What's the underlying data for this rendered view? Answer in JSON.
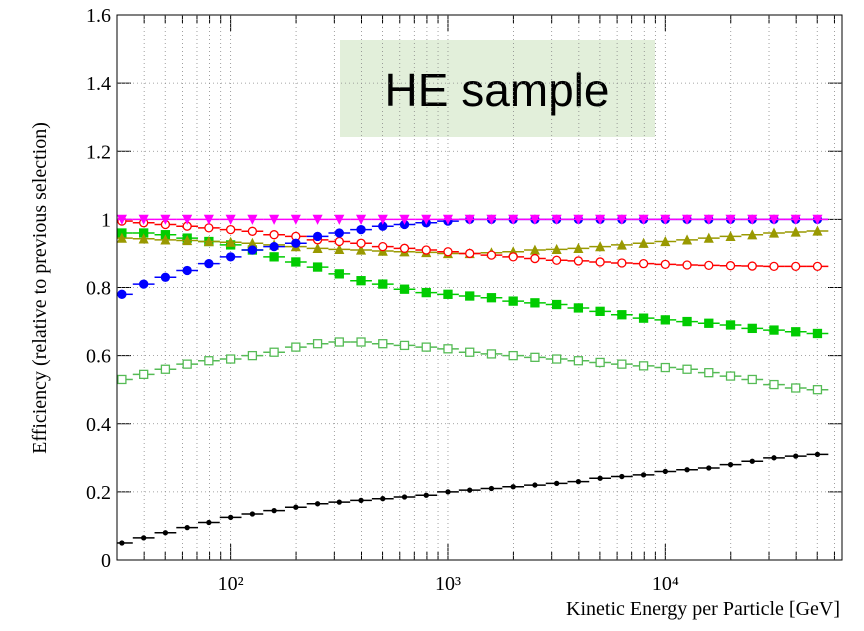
{
  "chart_data": {
    "type": "errorbar-scatter",
    "annotation": "HE sample",
    "xlabel": "Kinetic Energy per Particle [GeV]",
    "ylabel": "Efficiency (relative to previous selection)",
    "xscale": "log",
    "grid": true,
    "xlim": [
      30,
      65000
    ],
    "ylim": [
      0,
      1.6
    ],
    "yticks": [
      0,
      0.2,
      0.4,
      0.6,
      0.8,
      1,
      1.2,
      1.4,
      1.6
    ],
    "xticks": [
      {
        "value": 100,
        "label": "10²"
      },
      {
        "value": 1000,
        "label": "10³"
      },
      {
        "value": 10000,
        "label": "10⁴"
      }
    ],
    "xminorticks": [
      40,
      50,
      60,
      70,
      80,
      90,
      200,
      300,
      400,
      500,
      600,
      700,
      800,
      900,
      2000,
      3000,
      4000,
      5000,
      6000,
      7000,
      8000,
      9000,
      20000,
      30000,
      40000,
      50000,
      60000
    ],
    "x": [
      31.6,
      39.8,
      50.1,
      63.1,
      79.4,
      100,
      125.9,
      158.5,
      199.5,
      251.2,
      316.2,
      398.1,
      501.2,
      631,
      794.3,
      1000,
      1258.9,
      1584.9,
      1995.3,
      2511.9,
      3162.3,
      3981.1,
      5011.9,
      6309.6,
      7943.3,
      10000,
      12589,
      15849,
      19953,
      25119,
      31623,
      39811,
      50119
    ],
    "series": [
      {
        "color": "#ff00ff",
        "marker": "triangle-down",
        "values": [
          1,
          1,
          1,
          1,
          1,
          1,
          1,
          1,
          1,
          1,
          1,
          1,
          1,
          1,
          1,
          1,
          1,
          1,
          1,
          1,
          1,
          1,
          1,
          1,
          1,
          1,
          1,
          1,
          1,
          1,
          1,
          1,
          1
        ]
      },
      {
        "color": "#0000ff",
        "marker": "circle",
        "values": [
          0.78,
          0.81,
          0.83,
          0.85,
          0.87,
          0.89,
          0.91,
          0.92,
          0.93,
          0.95,
          0.96,
          0.97,
          0.98,
          0.985,
          0.99,
          0.995,
          1,
          1,
          1,
          1,
          1,
          1,
          1,
          1,
          1,
          1,
          1,
          1,
          1,
          1,
          1,
          1,
          1
        ]
      },
      {
        "color": "#ff0000",
        "marker": "circle-open",
        "values": [
          0.995,
          0.99,
          0.985,
          0.98,
          0.975,
          0.97,
          0.965,
          0.955,
          0.95,
          0.94,
          0.935,
          0.93,
          0.92,
          0.915,
          0.91,
          0.905,
          0.9,
          0.895,
          0.89,
          0.885,
          0.88,
          0.878,
          0.875,
          0.872,
          0.87,
          0.868,
          0.866,
          0.865,
          0.864,
          0.863,
          0.862,
          0.862,
          0.862
        ]
      },
      {
        "color": "#999900",
        "marker": "triangle-up",
        "values": [
          0.945,
          0.943,
          0.94,
          0.938,
          0.935,
          0.933,
          0.93,
          0.925,
          0.92,
          0.915,
          0.912,
          0.91,
          0.907,
          0.905,
          0.903,
          0.9,
          0.9,
          0.902,
          0.905,
          0.91,
          0.912,
          0.915,
          0.92,
          0.925,
          0.93,
          0.935,
          0.94,
          0.945,
          0.95,
          0.955,
          0.96,
          0.963,
          0.966
        ]
      },
      {
        "color": "#00cc00",
        "marker": "square",
        "values": [
          0.96,
          0.96,
          0.955,
          0.945,
          0.935,
          0.925,
          0.91,
          0.89,
          0.875,
          0.86,
          0.84,
          0.82,
          0.81,
          0.795,
          0.785,
          0.78,
          0.775,
          0.77,
          0.76,
          0.755,
          0.75,
          0.74,
          0.73,
          0.72,
          0.71,
          0.705,
          0.7,
          0.695,
          0.69,
          0.68,
          0.675,
          0.67,
          0.665
        ]
      },
      {
        "color": "#55bb55",
        "marker": "square-open",
        "values": [
          0.53,
          0.545,
          0.56,
          0.575,
          0.585,
          0.59,
          0.6,
          0.61,
          0.625,
          0.635,
          0.64,
          0.64,
          0.635,
          0.63,
          0.625,
          0.62,
          0.61,
          0.605,
          0.6,
          0.595,
          0.59,
          0.585,
          0.58,
          0.575,
          0.57,
          0.565,
          0.56,
          0.55,
          0.54,
          0.53,
          0.515,
          0.505,
          0.5
        ]
      },
      {
        "color": "#000000",
        "marker": "dot",
        "values": [
          0.05,
          0.065,
          0.08,
          0.095,
          0.11,
          0.125,
          0.135,
          0.145,
          0.155,
          0.165,
          0.17,
          0.175,
          0.18,
          0.185,
          0.19,
          0.2,
          0.205,
          0.21,
          0.215,
          0.22,
          0.225,
          0.23,
          0.24,
          0.245,
          0.25,
          0.26,
          0.265,
          0.27,
          0.28,
          0.29,
          0.3,
          0.305,
          0.31
        ]
      }
    ]
  }
}
